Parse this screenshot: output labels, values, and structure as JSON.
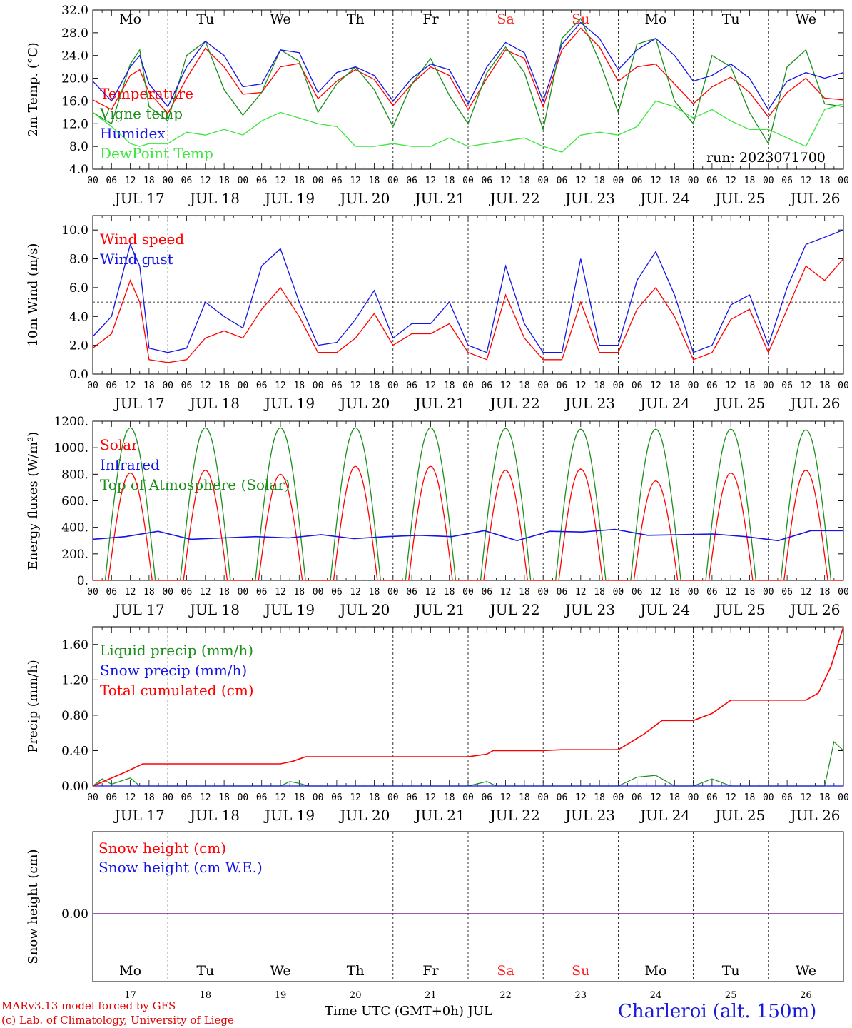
{
  "footer": {
    "model_line": "MARv3.13 model forced by GFS",
    "credit_line": "(c) Lab. of Climatology, University of Liege",
    "xaxis_title": "Time UTC (GMT+0h) JUL",
    "station": "Charleroi (alt. 150m)"
  },
  "run_label": "run: 2023071700",
  "colors": {
    "red": "#ff0000",
    "green": "#1a8f1a",
    "blue": "#1414e6",
    "lightgreen": "#3ce63c",
    "purple": "#7a1f9e",
    "weekend": "#ff2020"
  },
  "chart_data": [
    {
      "type": "line",
      "ylabel": "2m Temp. (°C)",
      "ylim": [
        4.0,
        32.0
      ],
      "yticks": [
        "4.0",
        "8.0",
        "12.0",
        "16.0",
        "20.0",
        "24.0",
        "28.0",
        "32.0"
      ],
      "day_labels": [
        "Mo",
        "Tu",
        "We",
        "Th",
        "Fr",
        "Sa",
        "Su",
        "Mo",
        "Tu",
        "We"
      ],
      "date_labels": [
        "JUL 17",
        "JUL 18",
        "JUL 19",
        "JUL 20",
        "JUL 21",
        "JUL 22",
        "JUL 23",
        "JUL 24",
        "JUL 25",
        "JUL 26"
      ],
      "hour_ticks": [
        "00",
        "06",
        "12",
        "18"
      ],
      "x_hours": [
        0,
        6,
        12,
        15,
        18,
        24,
        30,
        36,
        42,
        48,
        54,
        60,
        66,
        72,
        78,
        84,
        90,
        96,
        102,
        108,
        114,
        120,
        126,
        132,
        138,
        144,
        150,
        156,
        162,
        168,
        174,
        180,
        186,
        192,
        198,
        204,
        210,
        216,
        222,
        228,
        234,
        240
      ],
      "series": [
        {
          "name": "Temperature",
          "color": "#ff0000",
          "values": [
            16.2,
            14.5,
            20.5,
            21.5,
            17.5,
            13.8,
            20.0,
            25.3,
            22.0,
            17.2,
            17.5,
            22.0,
            22.6,
            16.4,
            19.5,
            21.5,
            19.8,
            15.2,
            19.0,
            22.0,
            20.5,
            14.5,
            20.0,
            25.0,
            23.5,
            15.0,
            25.0,
            28.8,
            25.5,
            19.5,
            22.0,
            22.5,
            19.0,
            15.5,
            18.5,
            20.2,
            17.5,
            13.2,
            17.5,
            20.0,
            16.5,
            16.2
          ]
        },
        {
          "name": "Vigne temp",
          "color": "#1a8f1a",
          "values": [
            14.0,
            12.0,
            22.5,
            25.0,
            15.0,
            12.5,
            24.0,
            26.5,
            18.0,
            13.5,
            17.5,
            25.0,
            23.0,
            14.0,
            19.0,
            22.0,
            18.0,
            11.5,
            19.0,
            23.5,
            17.0,
            12.0,
            21.0,
            25.5,
            21.0,
            11.0,
            27.0,
            30.5,
            23.0,
            14.0,
            26.0,
            27.0,
            16.0,
            12.0,
            24.0,
            22.0,
            14.0,
            8.5,
            22.0,
            25.0,
            15.5,
            15.0
          ]
        },
        {
          "name": "Humidex",
          "color": "#1414e6",
          "values": [
            19.5,
            16.0,
            22.0,
            24.0,
            19.0,
            15.0,
            22.0,
            26.5,
            24.0,
            18.5,
            19.0,
            25.0,
            24.5,
            17.5,
            21.0,
            22.0,
            20.5,
            16.0,
            20.0,
            22.5,
            21.5,
            15.5,
            22.0,
            26.3,
            24.5,
            16.0,
            26.0,
            29.8,
            27.0,
            21.5,
            25.0,
            27.0,
            24.0,
            19.5,
            20.5,
            22.5,
            20.0,
            14.5,
            19.5,
            21.0,
            20.0,
            21.0
          ]
        },
        {
          "name": "DewPoint Temp",
          "color": "#3ce63c",
          "values": [
            14.0,
            11.5,
            8.5,
            8.0,
            8.5,
            8.5,
            10.5,
            10.0,
            11.0,
            10.0,
            12.5,
            14.0,
            13.0,
            12.0,
            11.5,
            8.0,
            8.0,
            8.5,
            8.0,
            8.0,
            9.5,
            8.0,
            8.5,
            9.0,
            9.5,
            8.0,
            7.0,
            10.0,
            10.5,
            10.0,
            11.5,
            16.0,
            15.0,
            13.0,
            14.5,
            12.5,
            11.0,
            11.0,
            9.5,
            8.0,
            14.5,
            15.5
          ]
        }
      ]
    },
    {
      "type": "line",
      "ylabel": "10m Wind (m/s)",
      "ylim": [
        0.0,
        11.0
      ],
      "yticks": [
        "0.0",
        "2.0",
        "4.0",
        "6.0",
        "8.0",
        "10.0"
      ],
      "date_labels": [
        "JUL 17",
        "JUL 18",
        "JUL 19",
        "JUL 20",
        "JUL 21",
        "JUL 22",
        "JUL 23",
        "JUL 24",
        "JUL 25",
        "JUL 26"
      ],
      "reference_line": 5.0,
      "x_hours": [
        0,
        6,
        12,
        15,
        18,
        24,
        30,
        36,
        42,
        48,
        54,
        60,
        66,
        72,
        78,
        84,
        90,
        96,
        102,
        108,
        114,
        120,
        126,
        132,
        138,
        144,
        150,
        156,
        162,
        168,
        174,
        180,
        186,
        192,
        198,
        204,
        210,
        216,
        222,
        228,
        234,
        240
      ],
      "series": [
        {
          "name": "Wind speed",
          "color": "#ff0000",
          "values": [
            1.8,
            2.8,
            6.5,
            5.0,
            1.0,
            0.8,
            1.0,
            2.5,
            3.0,
            2.5,
            4.5,
            6.0,
            4.0,
            1.5,
            1.5,
            2.5,
            4.2,
            2.0,
            2.8,
            2.8,
            3.5,
            1.5,
            1.0,
            5.5,
            2.5,
            1.0,
            1.0,
            5.0,
            1.5,
            1.5,
            4.5,
            6.0,
            4.0,
            1.0,
            1.5,
            3.8,
            4.5,
            1.5,
            4.5,
            7.5,
            6.5,
            8.0
          ]
        },
        {
          "name": "Wind gust",
          "color": "#1414e6",
          "values": [
            2.6,
            4.0,
            9.0,
            7.5,
            1.8,
            1.5,
            1.8,
            5.0,
            4.0,
            3.2,
            7.5,
            8.7,
            5.0,
            2.0,
            2.2,
            3.8,
            5.8,
            2.5,
            3.5,
            3.5,
            5.0,
            2.0,
            1.5,
            7.5,
            3.5,
            1.5,
            1.5,
            8.0,
            2.0,
            2.0,
            6.5,
            8.5,
            5.5,
            1.5,
            2.0,
            4.8,
            5.5,
            2.0,
            6.0,
            9.0,
            9.5,
            10.0
          ]
        }
      ]
    },
    {
      "type": "line",
      "ylabel": "Energy fluxes (W/m²)",
      "ylim": [
        0,
        1200
      ],
      "yticks": [
        "0.",
        "200.",
        "400.",
        "600.",
        "800.",
        "1000.",
        "1200."
      ],
      "date_labels": [
        "JUL 17",
        "JUL 18",
        "JUL 19",
        "JUL 20",
        "JUL 21",
        "JUL 22",
        "JUL 23",
        "JUL 24",
        "JUL 25",
        "JUL 26"
      ],
      "daily_peaks": {
        "Solar": [
          810,
          830,
          800,
          860,
          860,
          830,
          840,
          750,
          810,
          830
        ],
        "Top of Atmosphere (Solar)": [
          1150,
          1150,
          1150,
          1150,
          1150,
          1145,
          1140,
          1140,
          1140,
          1135
        ]
      },
      "series": [
        {
          "name": "Solar",
          "color": "#ff0000"
        },
        {
          "name": "Infrared",
          "color": "#1414e6",
          "values": [
            310,
            330,
            370,
            310,
            320,
            330,
            320,
            345,
            315,
            330,
            340,
            330,
            375,
            300,
            370,
            365,
            385,
            340,
            345,
            350,
            330,
            300,
            375,
            375
          ]
        },
        {
          "name": "Top of Atmosphere (Solar)",
          "color": "#1a8f1a"
        }
      ]
    },
    {
      "type": "line",
      "ylabel": "Precip (mm/h)",
      "ylim": [
        0.0,
        1.8
      ],
      "yticks": [
        "0.00",
        "0.40",
        "0.80",
        "1.20",
        "1.60"
      ],
      "date_labels": [
        "JUL 17",
        "JUL 18",
        "JUL 19",
        "JUL 20",
        "JUL 21",
        "JUL 22",
        "JUL 23",
        "JUL 24",
        "JUL 25",
        "JUL 26"
      ],
      "series": [
        {
          "name": "Liquid precip (mm/h)",
          "color": "#1a8f1a",
          "x_hours": [
            0,
            3,
            6,
            12,
            15,
            18,
            60,
            63,
            66,
            69,
            120,
            126,
            129,
            132,
            168,
            174,
            180,
            186,
            192,
            198,
            204,
            216,
            228,
            234,
            237,
            240
          ],
          "values": [
            0.0,
            0.08,
            0.02,
            0.09,
            0.0,
            0.0,
            0.0,
            0.05,
            0.03,
            0.0,
            0.0,
            0.05,
            0.0,
            0.0,
            0.0,
            0.1,
            0.12,
            0.0,
            0.0,
            0.08,
            0.0,
            0.0,
            0.0,
            0.0,
            0.5,
            0.4
          ]
        },
        {
          "name": "Snow precip (mm/h)",
          "color": "#1414e6",
          "values": [
            0,
            0
          ]
        },
        {
          "name": "Total cumulated (cm)",
          "color": "#ff0000",
          "x_hours": [
            0,
            4,
            10,
            16,
            60,
            64,
            68,
            120,
            126,
            128,
            144,
            150,
            152,
            168,
            176,
            182,
            192,
            198,
            204,
            228,
            232,
            236,
            240
          ],
          "values": [
            0.0,
            0.06,
            0.15,
            0.25,
            0.25,
            0.28,
            0.33,
            0.33,
            0.36,
            0.4,
            0.4,
            0.41,
            0.41,
            0.41,
            0.58,
            0.74,
            0.74,
            0.82,
            0.97,
            0.97,
            1.05,
            1.35,
            1.8
          ]
        }
      ]
    },
    {
      "type": "line",
      "ylabel": "Snow height (cm)",
      "yticks": [
        "0.00"
      ],
      "day_labels": [
        "Mo",
        "Tu",
        "We",
        "Th",
        "Fr",
        "Sa",
        "Su",
        "Mo",
        "Tu",
        "We"
      ],
      "day_numbers": [
        "17",
        "18",
        "19",
        "20",
        "21",
        "22",
        "23",
        "24",
        "25",
        "26"
      ],
      "series": [
        {
          "name": "Snow height (cm)",
          "color": "#ff0000",
          "values": [
            0,
            0
          ]
        },
        {
          "name": "Snow height (cm W.E.)",
          "color": "#1414e6",
          "values": [
            0,
            0
          ]
        }
      ]
    }
  ]
}
